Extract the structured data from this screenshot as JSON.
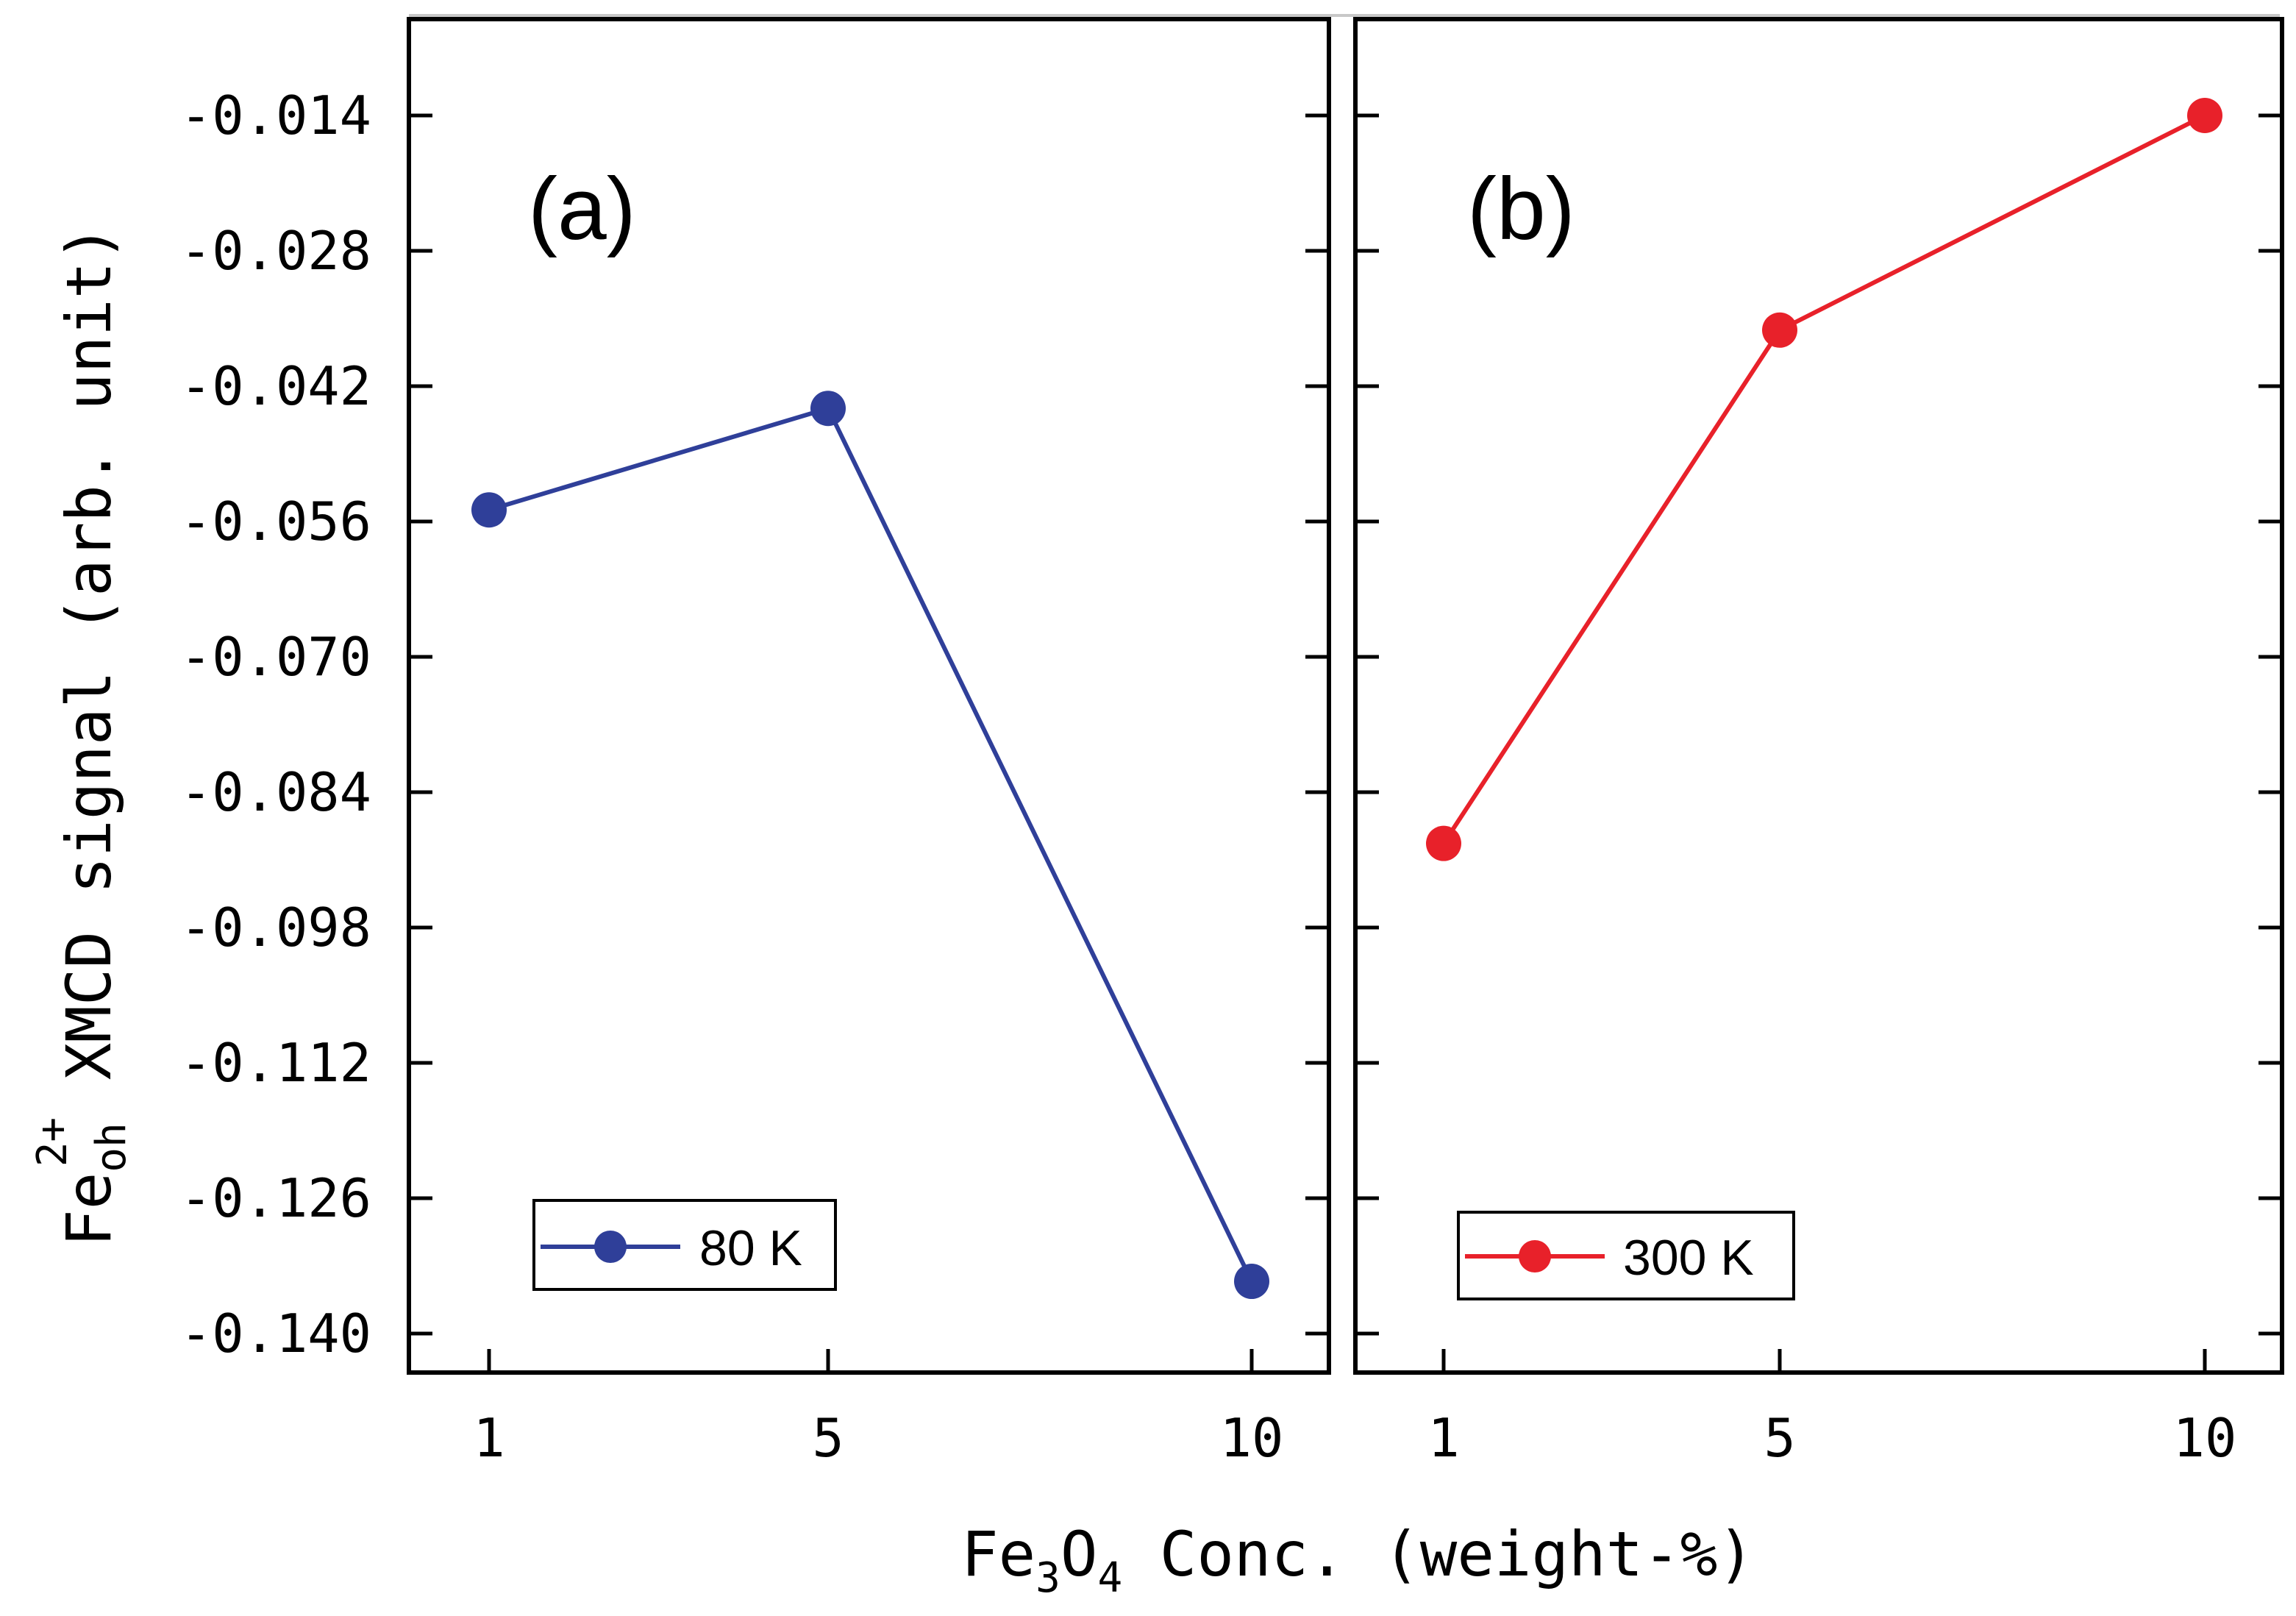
{
  "figure": {
    "y_axis_title": {
      "base": "Fe",
      "subscript": "oh",
      "superscript": "2+",
      "rest": " XMCD signal (arb. unit)"
    },
    "x_axis_title": {
      "base": "Fe",
      "sub1": "3",
      "mid": "O",
      "sub2": "4",
      "rest": " Conc. (weight-%)"
    }
  },
  "chart_data": [
    {
      "type": "line",
      "panel_label": "(a)",
      "categories": [
        "1",
        "5",
        "10"
      ],
      "x": [
        1,
        5,
        10
      ],
      "series": [
        {
          "name": "80 K",
          "values": [
            -0.0548,
            -0.0443,
            -0.1346
          ],
          "color": "#2f3f99"
        }
      ],
      "legend": "bottom-left",
      "xlabel": "Fe3O4 Conc. (weight-%)",
      "ylabel": "Feoh2+ XMCD signal (arb. unit)",
      "xlim": [
        0,
        11
      ],
      "ylim": [
        -0.1445,
        -0.005
      ],
      "yticks": [
        -0.014,
        -0.028,
        -0.042,
        -0.056,
        -0.07,
        -0.084,
        -0.098,
        -0.112,
        -0.126,
        -0.14
      ],
      "ytick_labels": [
        "-0.014",
        "-0.028",
        "-0.042",
        "-0.056",
        "-0.070",
        "-0.084",
        "-0.098",
        "-0.112",
        "-0.126",
        "-0.140"
      ],
      "grid": false
    },
    {
      "type": "line",
      "panel_label": "(b)",
      "categories": [
        "1",
        "5",
        "10"
      ],
      "x": [
        1,
        5,
        10
      ],
      "series": [
        {
          "name": "300 K",
          "values": [
            -0.0893,
            -0.0362,
            -0.014
          ],
          "color": "#e8212a"
        }
      ],
      "legend": "bottom-left",
      "xlim": [
        0,
        11
      ],
      "ylim": [
        -0.1445,
        -0.005
      ],
      "grid": false
    }
  ]
}
